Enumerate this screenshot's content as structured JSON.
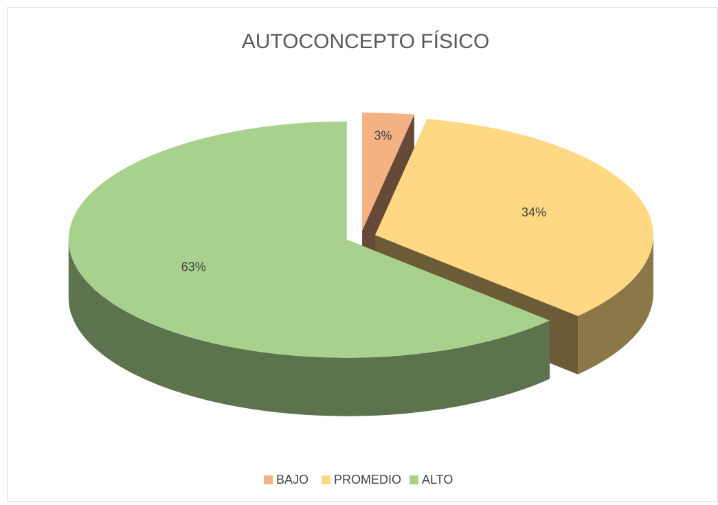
{
  "chart_data": {
    "type": "pie3d",
    "title": "AUTOCONCEPTO FÍSICO",
    "categories": [
      "BAJO",
      "PROMEDIO",
      "ALTO"
    ],
    "values": [
      3,
      34,
      63
    ],
    "value_labels": [
      "3%",
      "34%",
      "63%"
    ],
    "colors": [
      "#f4b183",
      "#ffd883",
      "#a9d18e"
    ],
    "legend": "bottom"
  }
}
